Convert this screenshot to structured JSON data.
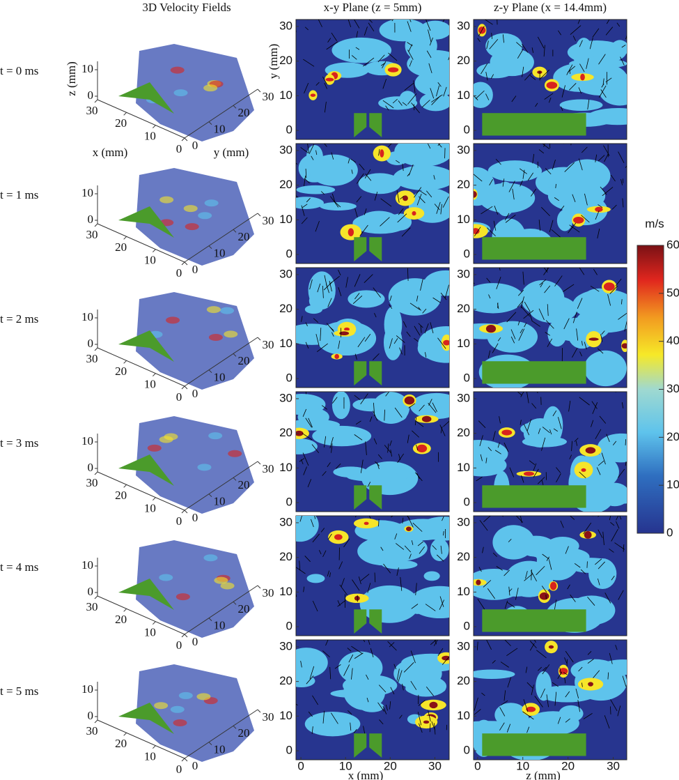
{
  "columns": [
    "3D Velocity Fields",
    "x-y Plane (z = 5mm)",
    "z-y Plane (x = 14.4mm)"
  ],
  "rows": [
    "t = 0 ms",
    "t = 1 ms",
    "t = 2 ms",
    "t = 3 ms",
    "t = 4 ms",
    "t = 5 ms"
  ],
  "view3d": {
    "xlabel": "x (mm)",
    "ylabel": "y (mm)",
    "zlabel": "z (mm)",
    "xticks": [
      30,
      20,
      10,
      0
    ],
    "yticks": [
      0,
      10,
      20,
      30
    ],
    "zticks": [
      0,
      10
    ]
  },
  "xy_plane": {
    "xlabel": "x (mm)",
    "ylabel": "y (mm)",
    "xlim": [
      -1.1,
      33.2
    ],
    "ylim": [
      -2.6,
      32
    ],
    "xticks": [
      0,
      10,
      20,
      30
    ],
    "yticks": [
      0,
      10,
      20,
      30
    ]
  },
  "zy_plane": {
    "xlabel": "z (mm)",
    "xlim": [
      -0.9,
      33
    ],
    "ylim": [
      -2.6,
      32
    ],
    "xticks": [
      0,
      10,
      20,
      30
    ],
    "yticks": [
      0,
      10,
      20,
      30
    ]
  },
  "colorbar": {
    "label": "m/s",
    "lim": [
      0,
      60
    ],
    "ticks": [
      0,
      10,
      20,
      30,
      40,
      50,
      60
    ]
  }
}
